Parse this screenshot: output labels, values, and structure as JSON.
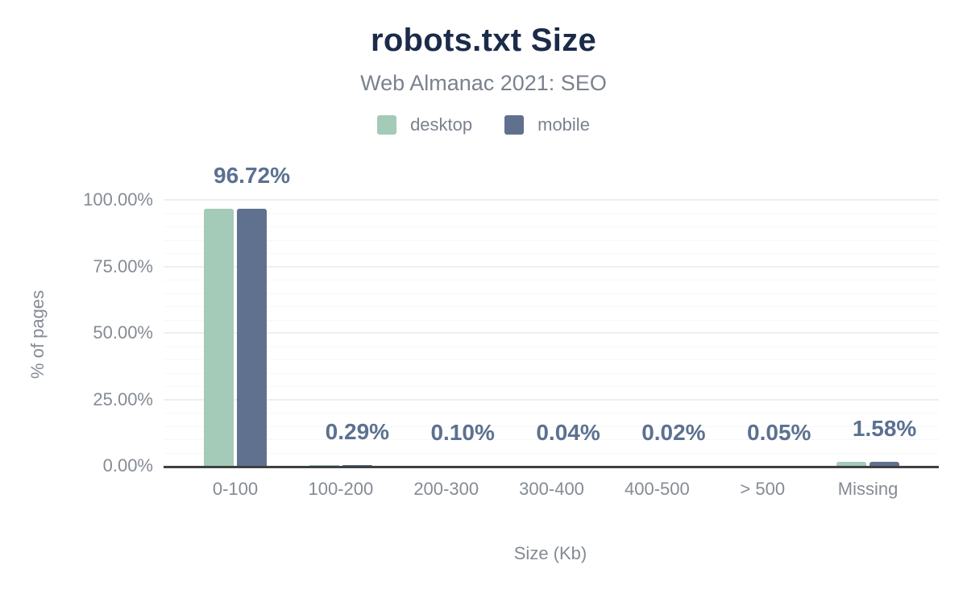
{
  "header": {
    "title": "robots.txt Size",
    "subtitle": "Web Almanac 2021: SEO"
  },
  "legend": {
    "items": [
      {
        "label": "desktop",
        "color": "#a4cab8"
      },
      {
        "label": "mobile",
        "color": "#5f718e"
      }
    ]
  },
  "colors": {
    "title": "#1b2b49",
    "subtitle": "#7b828e",
    "legend_text": "#7b828e",
    "axis_text": "#858b94",
    "value_label": "#5b7191",
    "desktop_bar": "#a4cab8",
    "mobile_bar": "#5f718e",
    "gridline_major": "#efefef",
    "gridline_minor": "#f7f7f7",
    "axis_line": "#404040"
  },
  "chart_data": {
    "type": "bar",
    "title": "robots.txt Size",
    "subtitle": "Web Almanac 2021: SEO",
    "categories": [
      "0-100",
      "100-200",
      "200-300",
      "300-400",
      "400-500",
      "> 500",
      "Missing"
    ],
    "series": [
      {
        "name": "desktop",
        "values": [
          96.72,
          0.29,
          0.1,
          0.04,
          0.02,
          0.05,
          1.58
        ]
      },
      {
        "name": "mobile",
        "values": [
          96.72,
          0.29,
          0.1,
          0.04,
          0.02,
          0.05,
          1.58
        ]
      }
    ],
    "value_labels": [
      "96.72%",
      "0.29%",
      "0.10%",
      "0.04%",
      "0.02%",
      "0.05%",
      "1.58%"
    ],
    "value_labels_series": "mobile",
    "xlabel": "Size (Kb)",
    "ylabel": "% of pages",
    "ylim": [
      0,
      100
    ],
    "y_ticks": [
      {
        "value": 100,
        "label": "100.00%"
      },
      {
        "value": 75,
        "label": "75.00%"
      },
      {
        "value": 50,
        "label": "50.00%"
      },
      {
        "value": 25,
        "label": "25.00%"
      },
      {
        "value": 0,
        "label": "0.00%"
      }
    ],
    "y_major_step": 25,
    "y_minor_step": 5,
    "grid": true,
    "legend_position": "top"
  }
}
